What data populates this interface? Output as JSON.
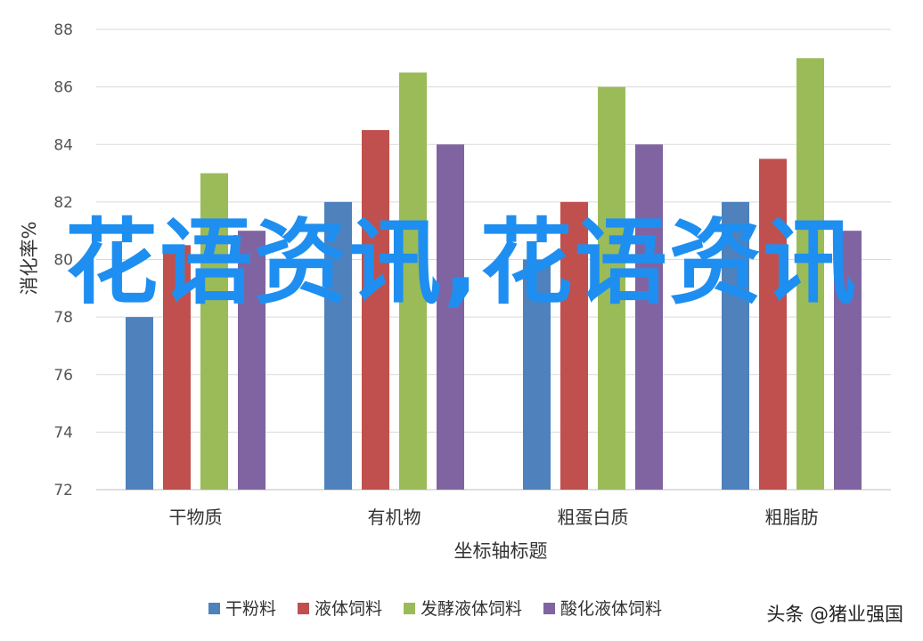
{
  "chart_data": {
    "type": "bar",
    "categories": [
      "干物质",
      "有机物",
      "粗蛋白质",
      "粗脂肪"
    ],
    "series": [
      {
        "name": "干粉料",
        "values": [
          78,
          82,
          80,
          82
        ],
        "color": "#4f81bd"
      },
      {
        "name": "液体饲料",
        "values": [
          80.5,
          84.5,
          82,
          83.5
        ],
        "color": "#c0504d"
      },
      {
        "name": "发酵液体饲料",
        "values": [
          83,
          86.5,
          86,
          87
        ],
        "color": "#9bbb59"
      },
      {
        "name": "酸化液体饲料",
        "values": [
          81,
          84,
          84,
          81
        ],
        "color": "#8064a2"
      }
    ],
    "ylim": [
      72,
      88
    ],
    "yticks": [
      72,
      74,
      76,
      78,
      80,
      82,
      84,
      86,
      88
    ],
    "xlabel": "坐标轴标题",
    "ylabel": "消化率%",
    "grid": true,
    "legend": "bottom"
  },
  "overlay": {
    "text": "花语资讯,花语资讯"
  },
  "watermark": "头条 @猪业强国"
}
